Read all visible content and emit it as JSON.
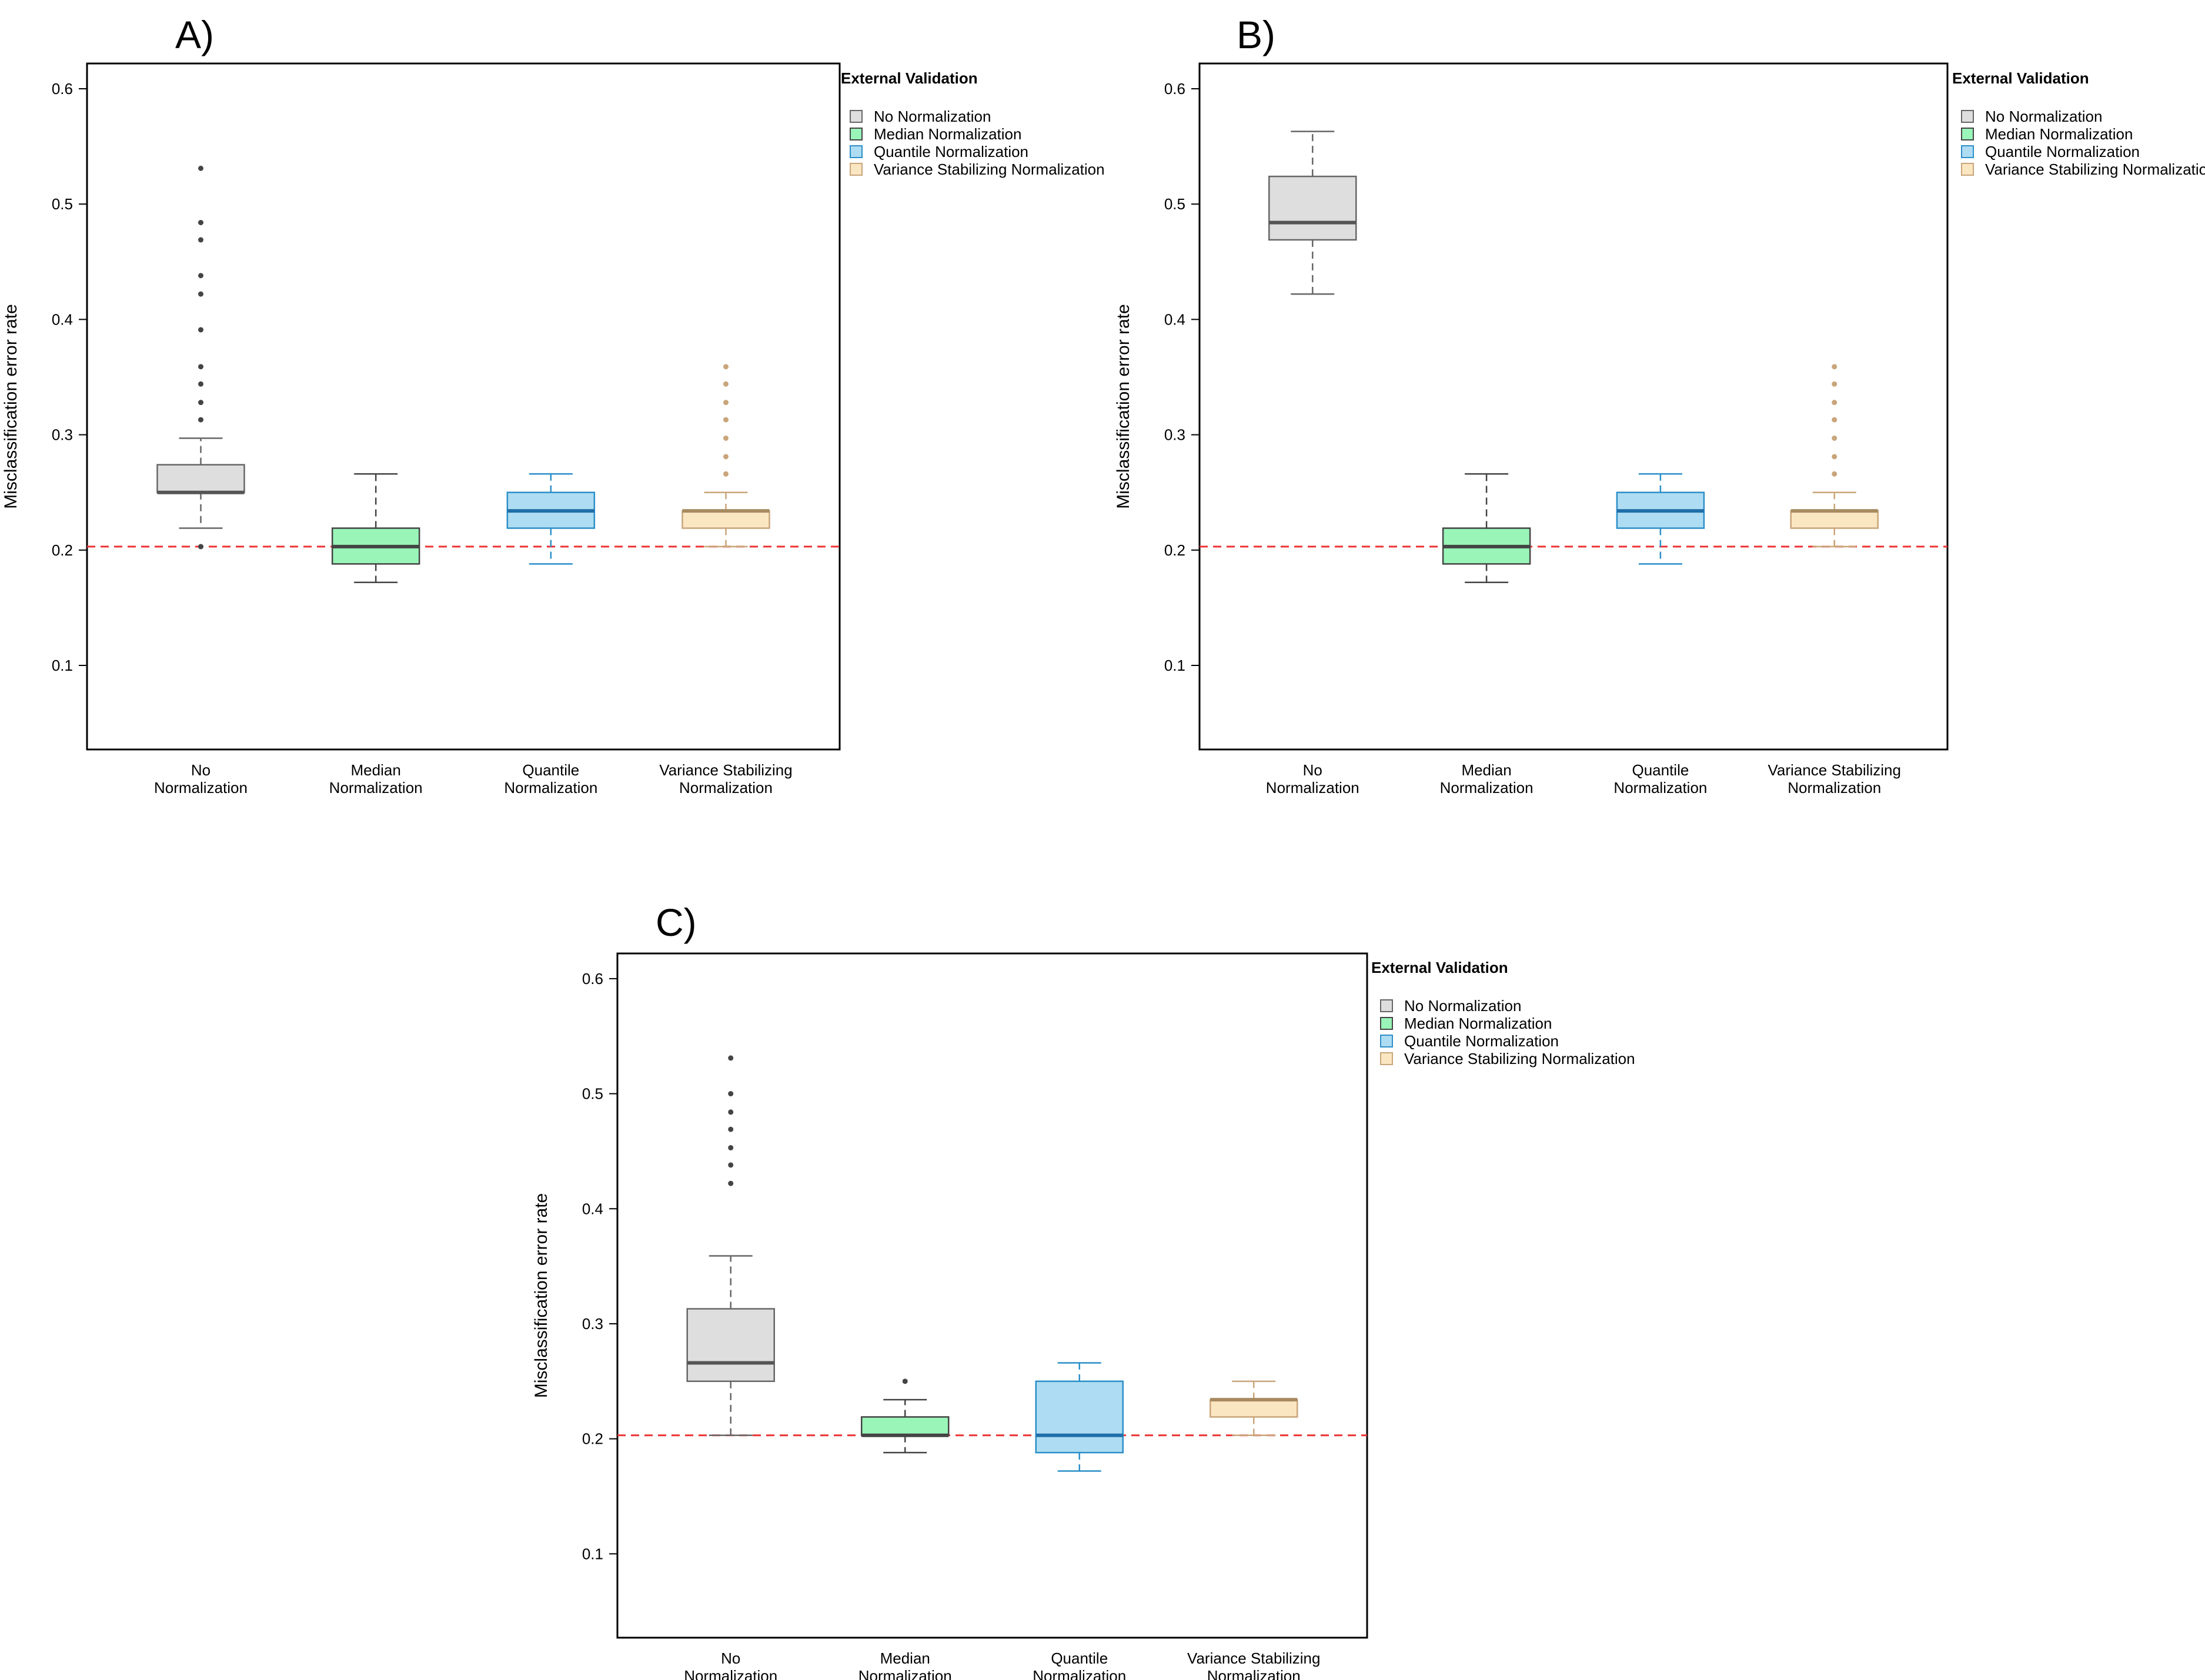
{
  "panel_labels": [
    "A)",
    "B)",
    "C)"
  ],
  "ylabel": "Misclassification error rate",
  "legend": {
    "title": "External Validation",
    "items": [
      {
        "label": "No Normalization"
      },
      {
        "label": "Median Normalization"
      },
      {
        "label": "Quantile Normalization"
      },
      {
        "label": "Variance Stabilizing Normalization"
      }
    ]
  },
  "categories": [
    [
      "No",
      "Normalization"
    ],
    [
      "Median",
      "Normalization"
    ],
    [
      "Quantile",
      "Normalization"
    ],
    [
      "Variance Stabilizing",
      "Normalization"
    ]
  ],
  "yticks": [
    "0.1",
    "0.2",
    "0.3",
    "0.4",
    "0.5",
    "0.6"
  ],
  "colors": {
    "no_norm_fill": "#dedede",
    "no_norm_line": "#666666",
    "median_fill": "#99f5b8",
    "median_line": "#444444",
    "quantile_fill": "#aedcf2",
    "quantile_line": "#2c8fc9",
    "vsn_fill": "#fbe6c2",
    "vsn_line": "#c9a57a",
    "reference_line": "#ee3333"
  },
  "chart_data": [
    {
      "type": "box",
      "panel": "A)",
      "categories": [
        "No Normalization",
        "Median Normalization",
        "Quantile Normalization",
        "Variance Stabilizing Normalization"
      ],
      "ylim": [
        0.05,
        0.62
      ],
      "ylabel": "Misclassification error rate",
      "reference_line": 0.203,
      "boxes": [
        {
          "whisker_low": 0.219,
          "q1": 0.25,
          "median": 0.25,
          "q3": 0.274,
          "whisker_high": 0.297,
          "outliers": [
            0.203,
            0.313,
            0.328,
            0.344,
            0.359,
            0.391,
            0.422,
            0.438,
            0.469,
            0.484,
            0.531
          ]
        },
        {
          "whisker_low": 0.172,
          "q1": 0.188,
          "median": 0.203,
          "q3": 0.219,
          "whisker_high": 0.266,
          "outliers": []
        },
        {
          "whisker_low": 0.188,
          "q1": 0.219,
          "median": 0.234,
          "q3": 0.25,
          "whisker_high": 0.266,
          "outliers": []
        },
        {
          "whisker_low": 0.203,
          "q1": 0.219,
          "median": 0.234,
          "q3": 0.234,
          "whisker_high": 0.25,
          "outliers": [
            0.266,
            0.281,
            0.297,
            0.313,
            0.328,
            0.344,
            0.359
          ]
        }
      ]
    },
    {
      "type": "box",
      "panel": "B)",
      "categories": [
        "No Normalization",
        "Median Normalization",
        "Quantile Normalization",
        "Variance Stabilizing Normalization"
      ],
      "ylim": [
        0.05,
        0.62
      ],
      "ylabel": "Misclassification error rate",
      "reference_line": 0.203,
      "boxes": [
        {
          "whisker_low": 0.422,
          "q1": 0.469,
          "median": 0.484,
          "q3": 0.524,
          "whisker_high": 0.563,
          "outliers": []
        },
        {
          "whisker_low": 0.172,
          "q1": 0.188,
          "median": 0.203,
          "q3": 0.219,
          "whisker_high": 0.266,
          "outliers": []
        },
        {
          "whisker_low": 0.188,
          "q1": 0.219,
          "median": 0.234,
          "q3": 0.25,
          "whisker_high": 0.266,
          "outliers": []
        },
        {
          "whisker_low": 0.203,
          "q1": 0.219,
          "median": 0.234,
          "q3": 0.234,
          "whisker_high": 0.25,
          "outliers": [
            0.266,
            0.281,
            0.297,
            0.313,
            0.328,
            0.344,
            0.359
          ]
        }
      ]
    },
    {
      "type": "box",
      "panel": "C)",
      "categories": [
        "No Normalization",
        "Median Normalization",
        "Quantile Normalization",
        "Variance Stabilizing Normalization"
      ],
      "ylim": [
        0.05,
        0.62
      ],
      "ylabel": "Misclassification error rate",
      "reference_line": 0.203,
      "boxes": [
        {
          "whisker_low": 0.203,
          "q1": 0.25,
          "median": 0.266,
          "q3": 0.313,
          "whisker_high": 0.359,
          "outliers": [
            0.422,
            0.438,
            0.453,
            0.469,
            0.484,
            0.5,
            0.531
          ]
        },
        {
          "whisker_low": 0.188,
          "q1": 0.203,
          "median": 0.203,
          "q3": 0.219,
          "whisker_high": 0.234,
          "outliers": [
            0.25
          ]
        },
        {
          "whisker_low": 0.172,
          "q1": 0.188,
          "median": 0.203,
          "q3": 0.25,
          "whisker_high": 0.266,
          "outliers": []
        },
        {
          "whisker_low": 0.203,
          "q1": 0.219,
          "median": 0.234,
          "q3": 0.234,
          "whisker_high": 0.25,
          "outliers": []
        }
      ]
    }
  ]
}
